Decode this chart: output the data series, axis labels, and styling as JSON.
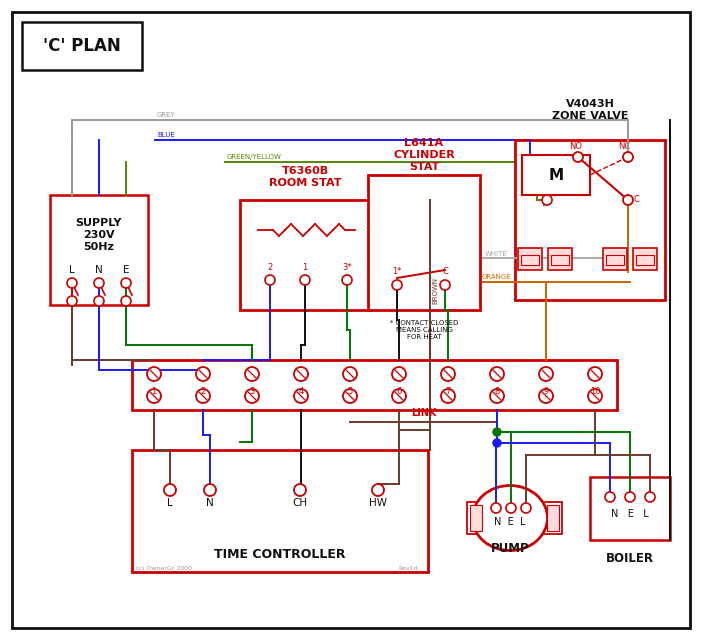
{
  "bg": "#ffffff",
  "red": "#cc0000",
  "blue": "#1a1aff",
  "green": "#007700",
  "black": "#111111",
  "grey": "#999999",
  "brown": "#6b3a2a",
  "orange": "#cc6600",
  "green_yellow": "#558800",
  "white_wire": "#aaaaaa",
  "pink_fill": "#ffdddd",
  "title": "'C' PLAN",
  "zone_title1": "V4043H",
  "zone_title2": "ZONE VALVE",
  "rs_title1": "T6360B",
  "rs_title2": "ROOM STAT",
  "cs_title1": "L641A",
  "cs_title2": "CYLINDER",
  "cs_title3": "STAT",
  "tc_title": "TIME CONTROLLER",
  "pump_title": "PUMP",
  "boiler_title": "BOILER",
  "supply1": "SUPPLY",
  "supply2": "230V",
  "supply3": "50Hz",
  "link_text": "LINK",
  "copyright": "(c) OwnerGr 2000",
  "rev": "Rev1d",
  "contact_note": "* CONTACT CLOSED\nMEANS CALLING\nFOR HEAT"
}
